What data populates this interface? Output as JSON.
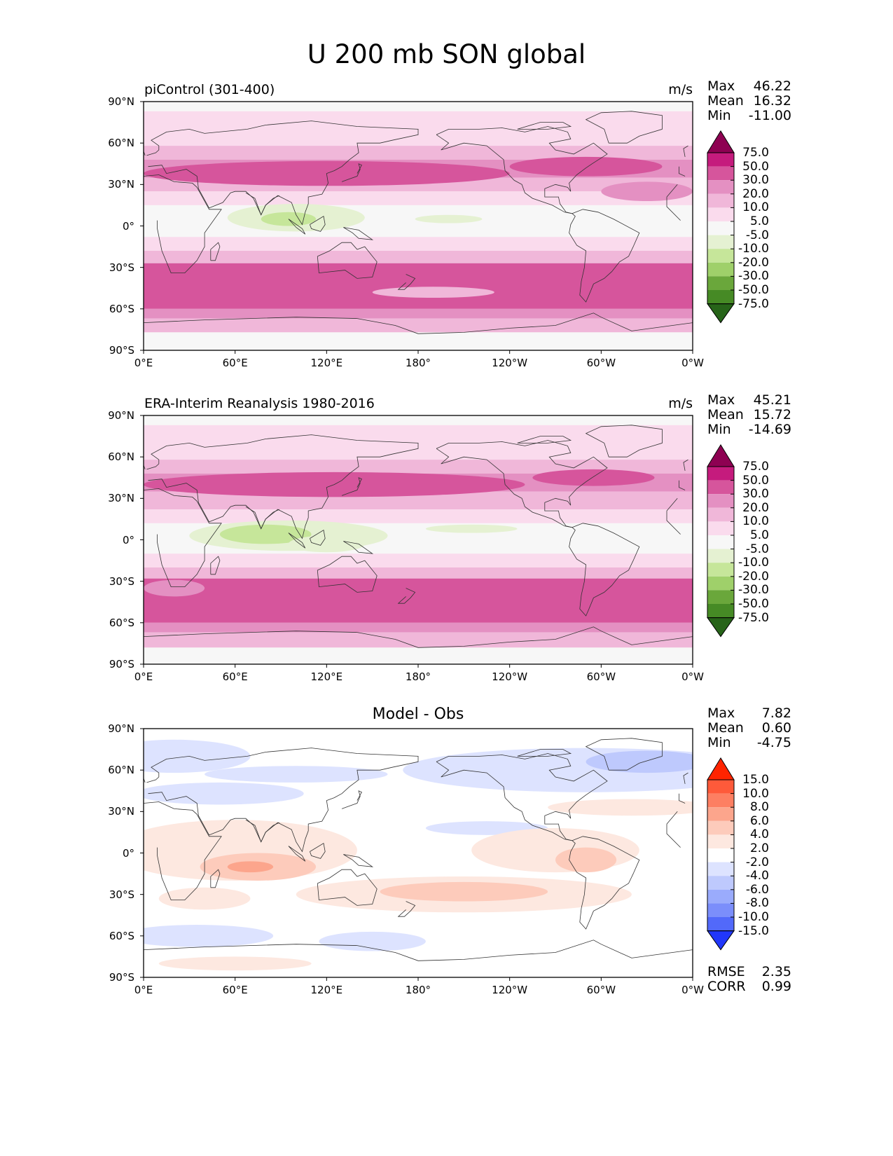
{
  "title": "U 200 mb SON global",
  "panels": [
    {
      "id": "test",
      "left_title": "piControl (301-400)",
      "center_title": "",
      "units": "m/s",
      "stats": {
        "Max": "46.22",
        "Mean": "16.32",
        "Min": "-11.00"
      },
      "colorbar": {
        "labels": [
          "75.0",
          "50.0",
          "30.0",
          "20.0",
          "10.0",
          "5.0",
          "-5.0",
          "-10.0",
          "-20.0",
          "-30.0",
          "-50.0",
          "-75.0"
        ],
        "colors": [
          "#8e0152",
          "#c51b7d",
          "#d6559c",
          "#e490c2",
          "#f0b7d9",
          "#fadbed",
          "#f7f7f7",
          "#e5f1d2",
          "#c6e69a",
          "#9fd06a",
          "#6aa73b",
          "#468a25",
          "#276419"
        ]
      }
    },
    {
      "id": "reference",
      "left_title": "ERA-Interim Reanalysis 1980-2016",
      "center_title": "",
      "units": "m/s",
      "stats": {
        "Max": "45.21",
        "Mean": "15.72",
        "Min": "-14.69"
      },
      "colorbar": {
        "labels": [
          "75.0",
          "50.0",
          "30.0",
          "20.0",
          "10.0",
          "5.0",
          "-5.0",
          "-10.0",
          "-20.0",
          "-30.0",
          "-50.0",
          "-75.0"
        ],
        "colors": [
          "#8e0152",
          "#c51b7d",
          "#d6559c",
          "#e490c2",
          "#f0b7d9",
          "#fadbed",
          "#f7f7f7",
          "#e5f1d2",
          "#c6e69a",
          "#9fd06a",
          "#6aa73b",
          "#468a25",
          "#276419"
        ]
      }
    },
    {
      "id": "diff",
      "left_title": "",
      "center_title": "Model - Obs",
      "units": "",
      "stats": {
        "Max": "7.82",
        "Mean": "0.60",
        "Min": "-4.75"
      },
      "extra_stats": {
        "RMSE": "2.35",
        "CORR": "0.99"
      },
      "colorbar": {
        "labels": [
          "15.0",
          "10.0",
          "8.0",
          "6.0",
          "4.0",
          "2.0",
          "-2.0",
          "-4.0",
          "-6.0",
          "-8.0",
          "-10.0",
          "-15.0"
        ],
        "colors": [
          "#ff2400",
          "#fe5a3a",
          "#fd7f62",
          "#fca58c",
          "#fdcbbb",
          "#fde8e0",
          "#ffffff",
          "#dde3ff",
          "#bec9fd",
          "#9aabfc",
          "#7b8efb",
          "#5269fa",
          "#2137fa"
        ]
      }
    }
  ],
  "axes": {
    "x_ticks": [
      "0°E",
      "60°E",
      "120°E",
      "180°",
      "120°W",
      "60°W",
      "0°W"
    ],
    "y_ticks": [
      "90°N",
      "60°N",
      "30°N",
      "0°",
      "30°S",
      "60°S",
      "90°S"
    ]
  }
}
